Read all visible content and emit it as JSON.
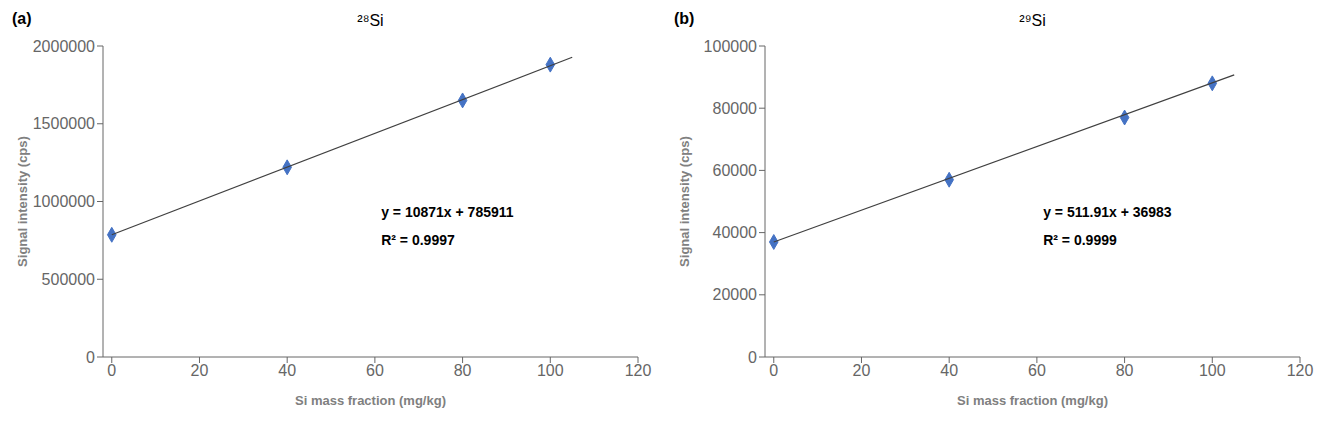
{
  "chart_data": [
    {
      "type": "scatter",
      "title": "²⁸Si",
      "annotations": [
        "(a)",
        "y = 10871x + 785911",
        "R² = 0.9997"
      ],
      "xlabel": "Si mass fraction (mg/kg)",
      "ylabel": "Signal intensity (cps)",
      "series": [
        {
          "type": "scatter",
          "color": "#4472C4",
          "marker": "diamond",
          "x": [
            0,
            40,
            80,
            100
          ],
          "values": [
            785911,
            1220000,
            1650000,
            1880000
          ]
        },
        {
          "type": "line",
          "color": "#404040",
          "line_style": "solid",
          "x": [
            0,
            105
          ],
          "values": [
            785911,
            1927366
          ]
        }
      ],
      "xlim": [
        -2,
        120
      ],
      "xticks": [
        0,
        20,
        40,
        60,
        80,
        100,
        120
      ],
      "ylim": [
        0,
        2000000
      ],
      "yticks": [
        0,
        500000,
        1000000,
        1500000,
        2000000
      ],
      "grid": false
    },
    {
      "type": "scatter",
      "title": "²⁹Si",
      "annotations": [
        "(b)",
        "y = 511.91x + 36983",
        "R² = 0.9999"
      ],
      "xlabel": "Si mass fraction (mg/kg)",
      "ylabel": "Signal intensity (cps)",
      "series": [
        {
          "type": "scatter",
          "color": "#4472C4",
          "marker": "diamond",
          "x": [
            0,
            40,
            80,
            100
          ],
          "values": [
            36983,
            57000,
            77000,
            88000
          ]
        },
        {
          "type": "line",
          "color": "#404040",
          "line_style": "solid",
          "x": [
            0,
            105
          ],
          "values": [
            36983,
            90733.55
          ]
        }
      ],
      "xlim": [
        -2,
        120
      ],
      "xticks": [
        0,
        20,
        40,
        60,
        80,
        100,
        120
      ],
      "ylim": [
        0,
        100000
      ],
      "yticks": [
        0,
        20000,
        40000,
        60000,
        80000,
        100000
      ],
      "grid": false
    }
  ]
}
